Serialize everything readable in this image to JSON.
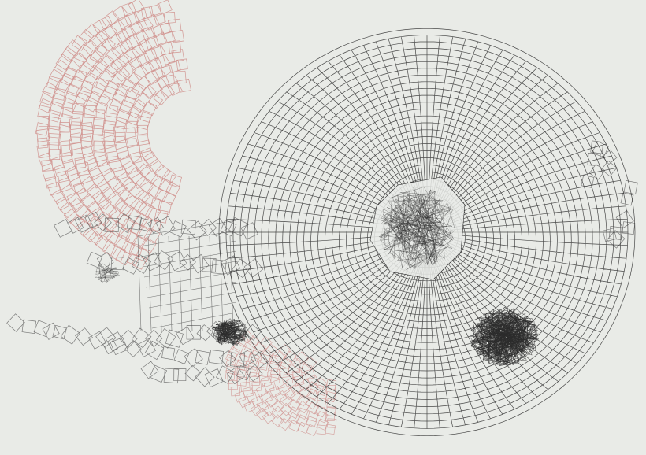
{
  "artwork": {
    "paper_color": "#e9ebe7",
    "black_ink": "#2b2b2b",
    "red_ink": "#c0524f"
  }
}
